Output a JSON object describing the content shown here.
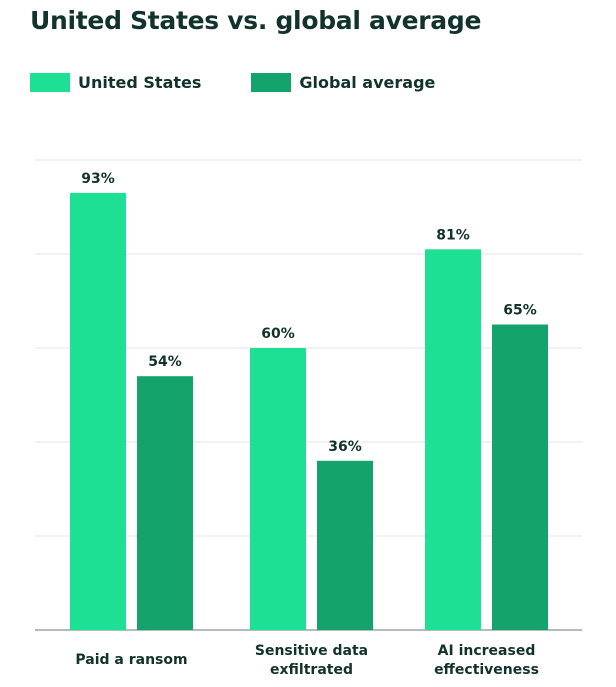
{
  "chart_data": {
    "type": "bar",
    "title": "United States vs. global average",
    "categories": [
      [
        "Paid a ransom"
      ],
      [
        "Sensitive data",
        "exfiltrated"
      ],
      [
        "AI increased",
        "effectiveness"
      ]
    ],
    "series": [
      {
        "name": "United States",
        "values": [
          93,
          60,
          81
        ],
        "color": "#1ee094"
      },
      {
        "name": "Global average",
        "values": [
          54,
          36,
          65
        ],
        "color": "#14a46b"
      }
    ],
    "value_suffix": "%",
    "ylim": [
      0,
      100
    ],
    "grid": true,
    "legend": "top-left"
  }
}
